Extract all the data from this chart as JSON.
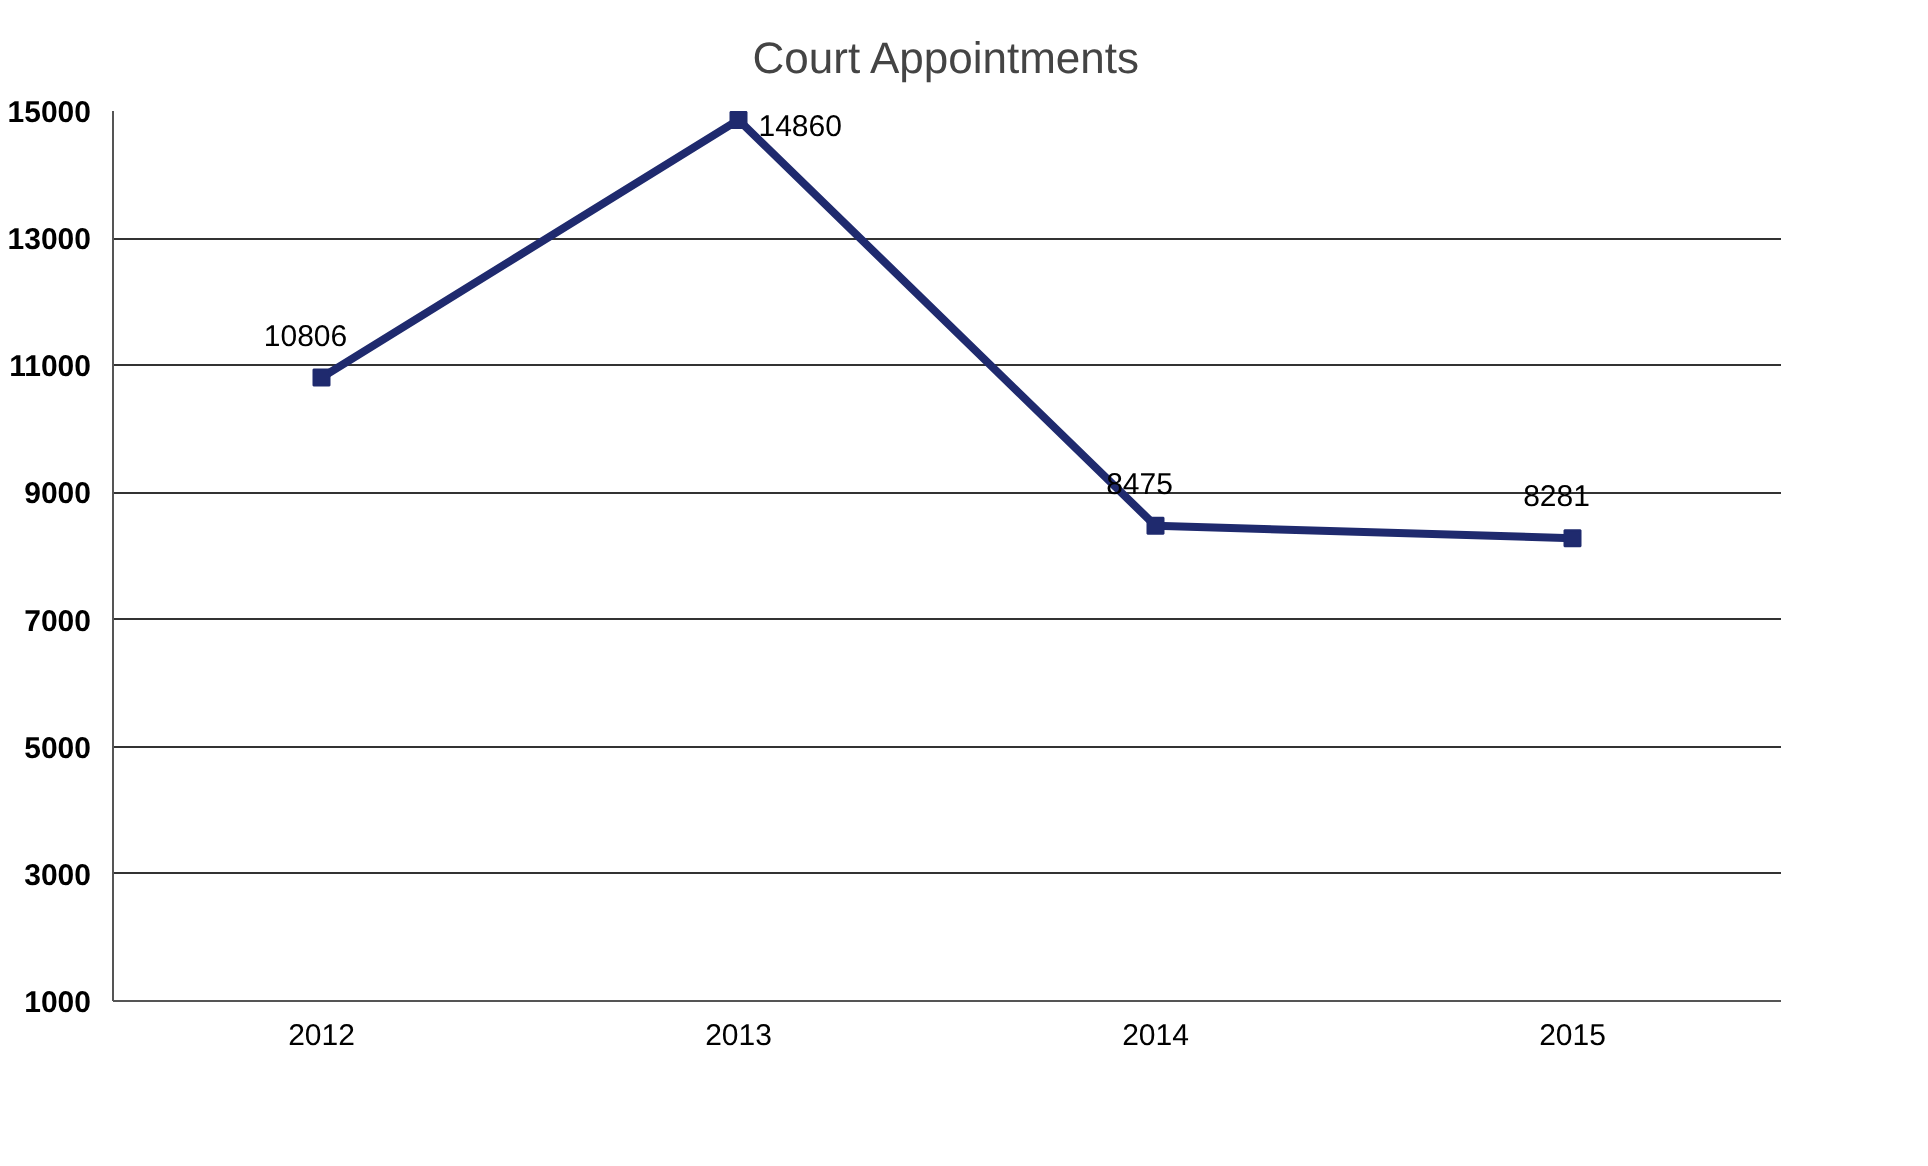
{
  "chart_data": {
    "type": "line",
    "title": "Court Appointments",
    "categories": [
      "2012",
      "2013",
      "2014",
      "2015"
    ],
    "series": [
      {
        "color": "#1f2a6e",
        "values": [
          10806,
          14860,
          8475,
          8281
        ]
      }
    ],
    "ylim": [
      1000,
      15000
    ],
    "yticks": [
      1000,
      3000,
      5000,
      7000,
      9000,
      11000,
      13000,
      15000
    ],
    "grid": "y",
    "marker": "square",
    "line_style": "solid",
    "data_labels": true
  }
}
